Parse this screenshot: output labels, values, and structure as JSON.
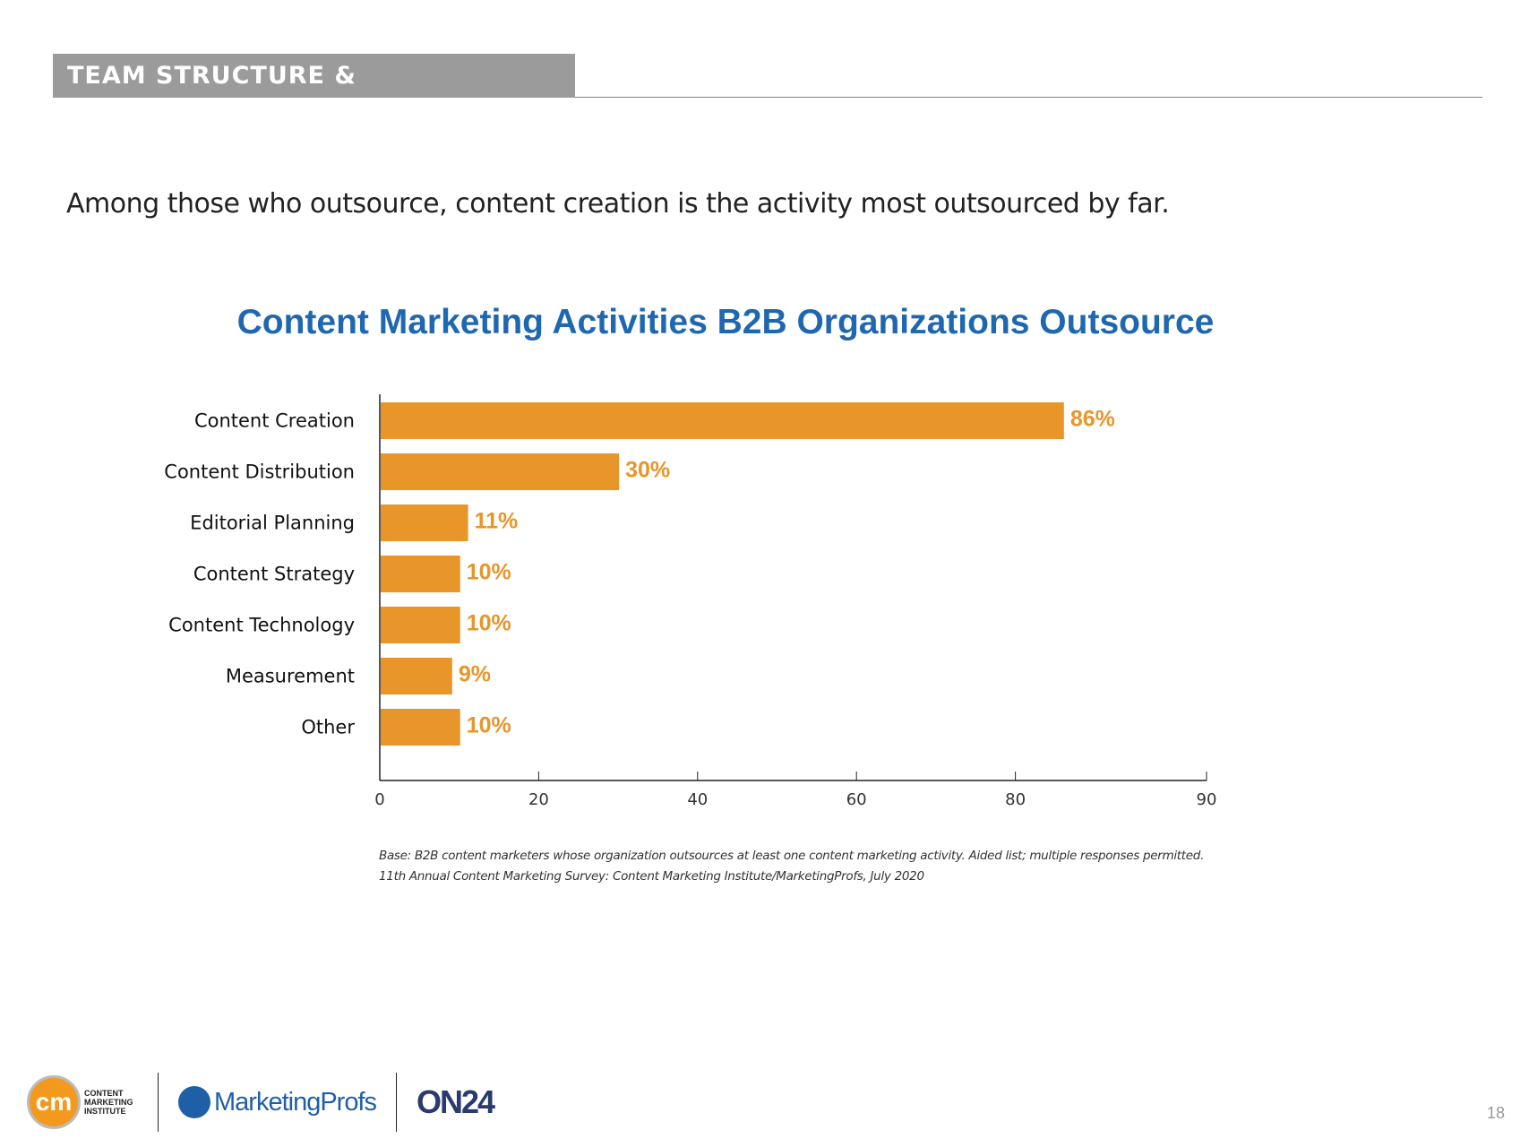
{
  "header": {
    "section": "TEAM STRUCTURE & OUTSOURCING"
  },
  "subtitle": "Among those who outsource, content creation is the activity most outsourced by far.",
  "chart_data": {
    "type": "bar",
    "orientation": "horizontal",
    "title": "Content Marketing Activities B2B Organizations Outsource",
    "categories": [
      "Content Creation",
      "Content Distribution",
      "Editorial Planning",
      "Content Strategy",
      "Content Technology",
      "Measurement",
      "Other"
    ],
    "values": [
      86,
      30,
      11,
      10,
      10,
      9,
      10
    ],
    "data_labels": [
      "86%",
      "30%",
      "11%",
      "10%",
      "10%",
      "9%",
      "10%"
    ],
    "x_ticks": [
      "0",
      "20",
      "40",
      "60",
      "80",
      "90"
    ],
    "xlim": [
      0,
      90
    ],
    "grid": false,
    "bar_color": "#e8952a",
    "title_color": "#1f68b0"
  },
  "footnotes": [
    "Base: B2B content marketers whose organization outsources at least one content marketing activity. Aided list; multiple responses permitted.",
    "11th Annual Content Marketing Survey: Content Marketing Institute/MarketingProfs, July 2020"
  ],
  "logos": {
    "cmi": "CONTENT MARKETING INSTITUTE",
    "cmi_mark": "cm",
    "mprofs": "MarketingProfs",
    "on24": "ON24"
  },
  "page_number": "18"
}
